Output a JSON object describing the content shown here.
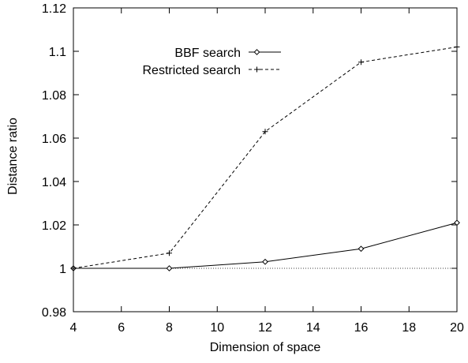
{
  "chart_data": {
    "type": "line",
    "xlabel": "Dimension of space",
    "ylabel": "Distance ratio",
    "xlim": [
      4,
      20
    ],
    "ylim": [
      0.98,
      1.12
    ],
    "xticks": [
      4,
      6,
      8,
      10,
      12,
      14,
      16,
      18,
      20
    ],
    "yticks": [
      0.98,
      1,
      1.02,
      1.04,
      1.06,
      1.08,
      1.1,
      1.12
    ],
    "ytick_labels": [
      "0.98",
      "1",
      "1.02",
      "1.04",
      "1.06",
      "1.08",
      "1.1",
      "1.12"
    ],
    "reference_line_y": 1,
    "legend_position": "top-center",
    "series": [
      {
        "name": "BBF search",
        "style": "solid",
        "marker": "diamond",
        "x": [
          4,
          8,
          12,
          16,
          20
        ],
        "values": [
          1.0,
          1.0,
          1.003,
          1.009,
          1.021
        ]
      },
      {
        "name": "Restricted search",
        "style": "dashed",
        "marker": "plus",
        "x": [
          4,
          8,
          12,
          16,
          20
        ],
        "values": [
          1.0,
          1.007,
          1.063,
          1.095,
          1.102
        ]
      }
    ]
  }
}
